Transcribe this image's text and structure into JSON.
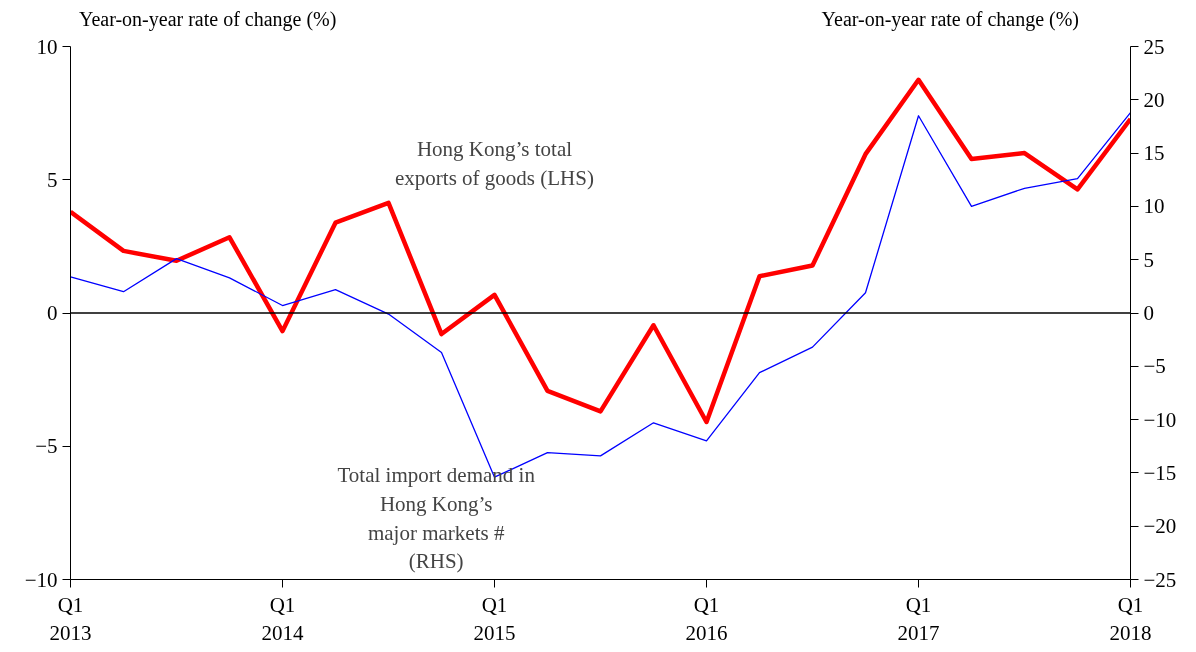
{
  "chart_data": {
    "type": "line",
    "ylabel": "Year-on-year rate of change (%)",
    "y2label": "Year-on-year rate of change (%)",
    "categories": [
      "Q1\n2013",
      null,
      null,
      null,
      "Q1\n2014",
      null,
      null,
      null,
      "Q1\n2015",
      null,
      null,
      null,
      "Q1\n2016",
      null,
      null,
      null,
      "Q1\n2017",
      null,
      null,
      null,
      "Q1\n2018"
    ],
    "series": [
      {
        "name": "Hong Kong’s total\nexports of goods (LHS)",
        "color": "#ff0000",
        "values": [
          3.8,
          2.33,
          1.96,
          2.84,
          -0.68,
          3.39,
          4.13,
          -0.79,
          0.68,
          -2.92,
          -3.69,
          -0.46,
          -4.09,
          1.38,
          1.78,
          5.96,
          8.75,
          5.78,
          6.0,
          4.64,
          7.28
        ]
      },
      {
        "name": "Total import demand in\nHong Kong’s\nmajor markets #\n(RHS)",
        "color": "#0000ff",
        "axis": "y2",
        "values": [
          3.4,
          2.0,
          5.1,
          3.3,
          0.7,
          2.2,
          -0.1,
          -3.7,
          -15.4,
          -13.1,
          -13.4,
          -10.3,
          -12.0,
          -5.6,
          -3.2,
          1.9,
          18.5,
          10.0,
          11.7,
          12.6,
          18.8
        ]
      }
    ],
    "ylim": [
      -10,
      10
    ],
    "yticks": [
      -10,
      -5,
      0,
      5,
      10
    ],
    "y2lim": [
      -25,
      25
    ],
    "y2ticks": [
      -25,
      -20,
      -15,
      -10,
      -5,
      0,
      5,
      10,
      15,
      20,
      25
    ],
    "ref_lines": [
      {
        "axis": "y",
        "value": 0,
        "color": "#000000"
      }
    ],
    "grid": false
  }
}
